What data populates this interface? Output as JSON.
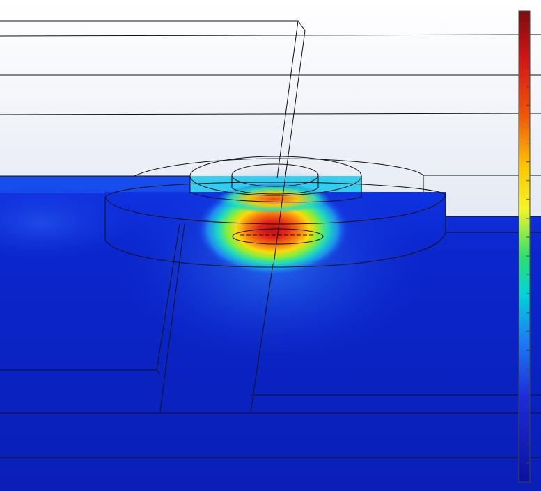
{
  "view": {
    "kind": "simulation-result-plot",
    "background_top": "#ffffff",
    "background_bottom": "#c3cfe4"
  },
  "field": {
    "base_color": "#0a2ad0",
    "hotspot_color": "#cc2a10",
    "colormap": [
      "#7a0d0d",
      "#d41818",
      "#f26a08",
      "#fbd000",
      "#ffff33",
      "#2ee06c",
      "#00d6d4",
      "#1a7ff5",
      "#1f2bd8",
      "#0b119e"
    ]
  },
  "colorbar": {
    "tick_count": 25,
    "frame_color": "#444444"
  },
  "geometry": {
    "edge_color": "#111111"
  }
}
